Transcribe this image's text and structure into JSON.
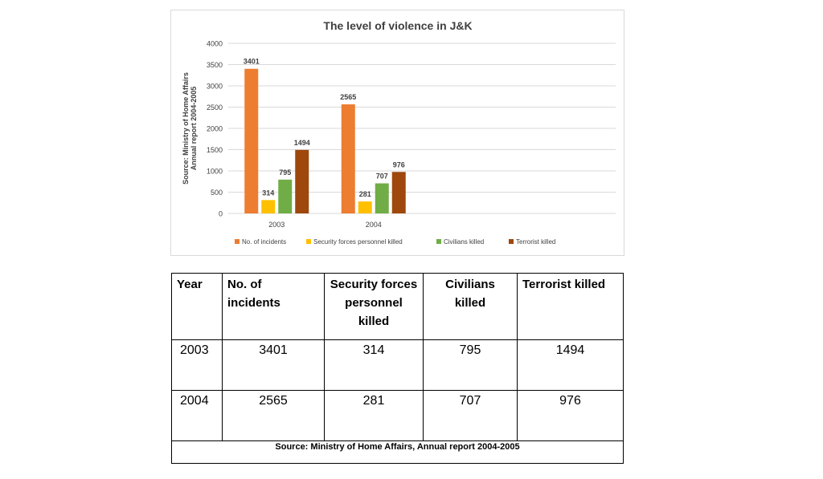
{
  "chart_data": {
    "type": "bar",
    "title": "The level of violence in J&K",
    "ylabel_line1": "Source: Ministry of Home Affairs",
    "ylabel_line2": "Annual report 2004-2005",
    "categories": [
      "2003",
      "2004"
    ],
    "ylim": [
      0,
      4000
    ],
    "yticks": [
      0,
      500,
      1000,
      1500,
      2000,
      2500,
      3000,
      3500,
      4000
    ],
    "grid": true,
    "legend_position": "bottom",
    "series": [
      {
        "name": "No. of incidents",
        "values": [
          3401,
          2565
        ],
        "color": "#ED7D31"
      },
      {
        "name": "Security forces personnel killed",
        "values": [
          314,
          281
        ],
        "color": "#FFC000"
      },
      {
        "name": "Civilians killed",
        "values": [
          795,
          707
        ],
        "color": "#70AD47"
      },
      {
        "name": "Terrorist killed",
        "values": [
          1494,
          976
        ],
        "color": "#9E480E"
      }
    ]
  },
  "table": {
    "headers": [
      "Year",
      "No. of\nincidents",
      "Security forces\npersonnel\nkilled",
      "Civilians\nkilled",
      "Terrorist killed"
    ],
    "rows": [
      [
        "2003",
        "3401",
        "314",
        "795",
        "1494"
      ],
      [
        "2004",
        "2565",
        "281",
        "707",
        "976"
      ]
    ],
    "source": "Source: Ministry of Home Affairs, Annual report 2004-2005"
  }
}
